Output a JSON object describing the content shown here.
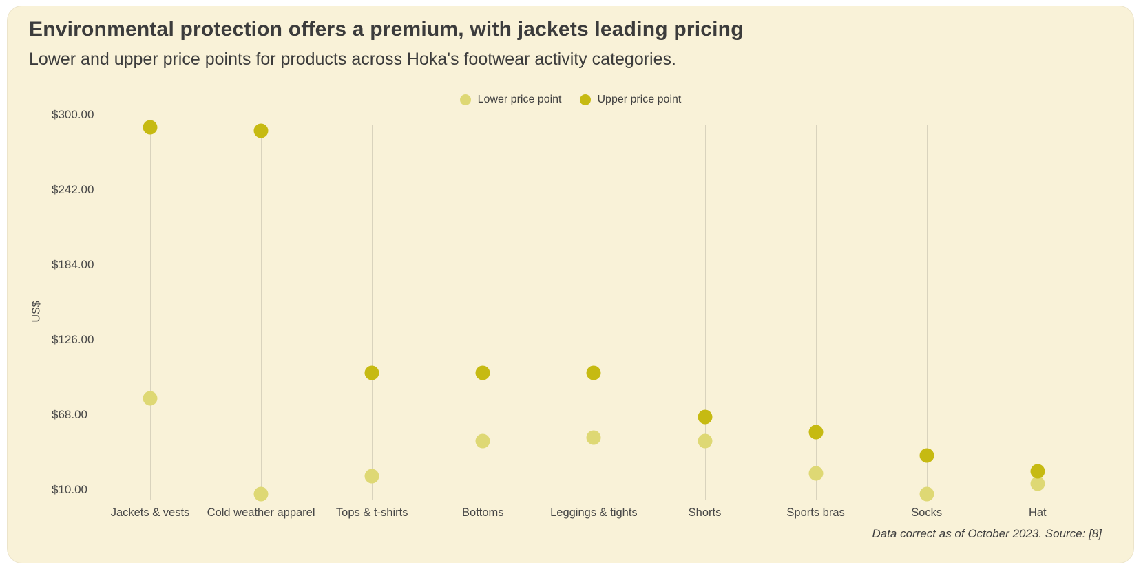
{
  "card": {
    "title": "Environmental protection offers a premium, with jackets leading pricing",
    "subtitle": "Lower and upper price points for products across Hoka's footwear activity categories.",
    "source_note": "Data correct as of October 2023. Source: [8]"
  },
  "colors": {
    "page_background": "#ffffff",
    "card_background": "#f9f2d8",
    "lower_point": "#ded874",
    "upper_point": "#c6ba12",
    "gridline": "#d6d0ba",
    "text": "#3f3f3f"
  },
  "chart_data": {
    "type": "scatter",
    "title": "Environmental protection offers a premium, with jackets leading pricing",
    "subtitle": "Lower and upper price points for products across Hoka's footwear activity categories.",
    "categories": [
      "Jackets & vests",
      "Cold weather apparel",
      "Tops & t-shirts",
      "Bottoms",
      "Leggings & tights",
      "Shorts",
      "Sports bras",
      "Socks",
      "Hat"
    ],
    "series": [
      {
        "name": "Lower price point",
        "color_key": "lower_point",
        "values": [
          88,
          14,
          28,
          55,
          58,
          55,
          30,
          14,
          22
        ]
      },
      {
        "name": "Upper price point",
        "color_key": "upper_point",
        "values": [
          298,
          295,
          108,
          108,
          108,
          74,
          62,
          44,
          32
        ]
      }
    ],
    "xlabel": "",
    "ylabel": "US$",
    "ylim": [
      10,
      300
    ],
    "yticks": [
      {
        "label": "$300.00",
        "value": 300
      },
      {
        "label": "$242.00",
        "value": 242
      },
      {
        "label": "$184.00",
        "value": 184
      },
      {
        "label": "$126.00",
        "value": 126
      },
      {
        "label": "$68.00",
        "value": 68
      },
      {
        "label": "$10.00",
        "value": 10
      }
    ],
    "grid": true,
    "legend_position": "top-center",
    "source": "Data correct as of October 2023. Source: [8]"
  }
}
